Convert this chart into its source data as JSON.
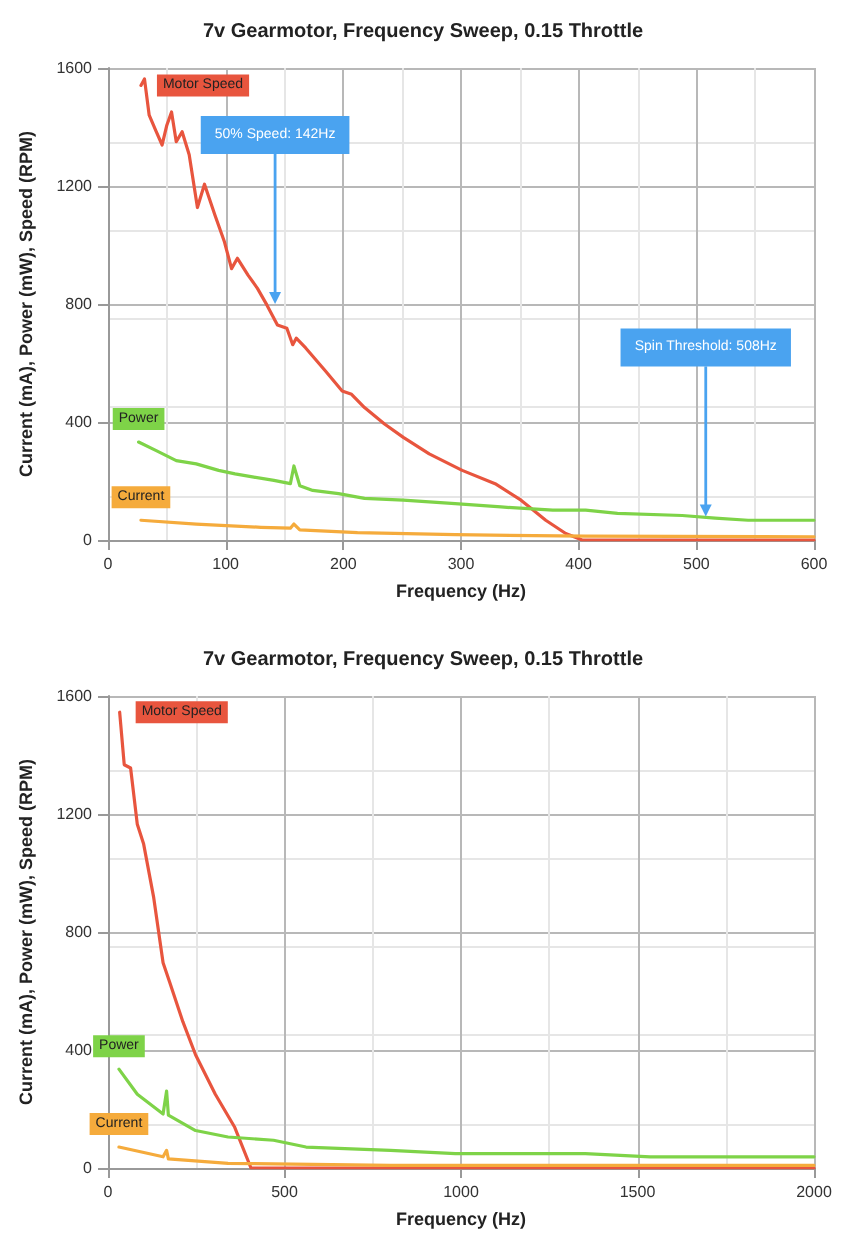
{
  "chart_data": [
    {
      "type": "line",
      "title": "7v Gearmotor, Frequency Sweep, 0.15 Throttle",
      "xlabel": "Frequency (Hz)",
      "ylabel": "Current (mA), Power (mW), Speed (RPM)",
      "xlim": [
        0,
        600
      ],
      "xticks": [
        0,
        100,
        200,
        300,
        400,
        500,
        600
      ],
      "ylim": [
        0,
        1600
      ],
      "yticks": [
        0,
        400,
        800,
        1200,
        1600
      ],
      "grid": true,
      "marker": "none",
      "line_style": "solid",
      "series": [
        {
          "name": "Motor Speed",
          "color": "#e8553e",
          "x": [
            28,
            31,
            35,
            41,
            46,
            50,
            54,
            58,
            63,
            69,
            76,
            82,
            91,
            99,
            105,
            110,
            119,
            127,
            135,
            144,
            152,
            157,
            160,
            168,
            185,
            199,
            207,
            218,
            235,
            251,
            273,
            301,
            329,
            351,
            372,
            389,
            403,
            450,
            500,
            550,
            600
          ],
          "values": [
            1541,
            1563,
            1440,
            1384,
            1339,
            1406,
            1451,
            1350,
            1384,
            1306,
            1127,
            1206,
            1100,
            1010,
            920,
            955,
            898,
            853,
            797,
            729,
            718,
            662,
            684,
            651,
            572,
            505,
            494,
            449,
            393,
            348,
            292,
            236,
            191,
            135,
            67,
            22,
            0,
            0,
            0,
            0,
            0
          ]
        },
        {
          "name": "Power",
          "color": "#7ed348",
          "x": [
            26,
            41,
            58,
            75,
            94,
            108,
            124,
            141,
            155,
            158,
            163,
            174,
            196,
            218,
            251,
            295,
            334,
            378,
            406,
            433,
            488,
            516,
            544,
            600
          ],
          "values": [
            332,
            303,
            269,
            258,
            236,
            224,
            213,
            202,
            191,
            251,
            184,
            168,
            157,
            141,
            135,
            123,
            112,
            101,
            101,
            90,
            83,
            74,
            67,
            67
          ]
        },
        {
          "name": "Current",
          "color": "#f5ab3c",
          "x": [
            28,
            75,
            130,
            155,
            158,
            163,
            212,
            295,
            406,
            600
          ],
          "values": [
            67,
            54,
            43,
            40,
            54,
            34,
            25,
            18,
            13,
            11
          ]
        }
      ],
      "annotations": [
        {
          "text": "50% Speed: 142Hz",
          "x": 142,
          "y": 800
        },
        {
          "text": "Spin Threshold: 508Hz",
          "x": 508,
          "y": 80
        }
      ]
    },
    {
      "type": "line",
      "title": "7v Gearmotor, Frequency Sweep, 0.15 Throttle",
      "xlabel": "Frequency (Hz)",
      "ylabel": "Current (mA), Power (mW), Speed (RPM)",
      "xlim": [
        0,
        2000
      ],
      "xticks": [
        0,
        500,
        1000,
        1500,
        2000
      ],
      "ylim": [
        0,
        1600
      ],
      "yticks": [
        0,
        400,
        800,
        1200,
        1600
      ],
      "grid": true,
      "marker": "none",
      "line_style": "solid",
      "series": [
        {
          "name": "Motor Speed",
          "color": "#e8553e",
          "x": [
            33,
            46,
            64,
            83,
            101,
            129,
            156,
            175,
            212,
            248,
            304,
            359,
            405,
            1000,
            2000
          ],
          "values": [
            1545,
            1367,
            1356,
            1165,
            1098,
            920,
            696,
            629,
            496,
            384,
            250,
            138,
            0,
            0,
            0
          ]
        },
        {
          "name": "Power",
          "color": "#7ed348",
          "x": [
            31,
            83,
            156,
            166,
            171,
            248,
            340,
            469,
            561,
            800,
            984,
            1352,
            1536,
            2000
          ],
          "values": [
            335,
            250,
            183,
            261,
            179,
            127,
            105,
            94,
            71,
            60,
            49,
            49,
            38,
            38
          ]
        },
        {
          "name": "Current",
          "color": "#f5ab3c",
          "x": [
            31,
            156,
            166,
            171,
            340,
            800,
            2000
          ],
          "values": [
            71,
            38,
            60,
            31,
            16,
            9,
            9
          ]
        }
      ]
    }
  ]
}
